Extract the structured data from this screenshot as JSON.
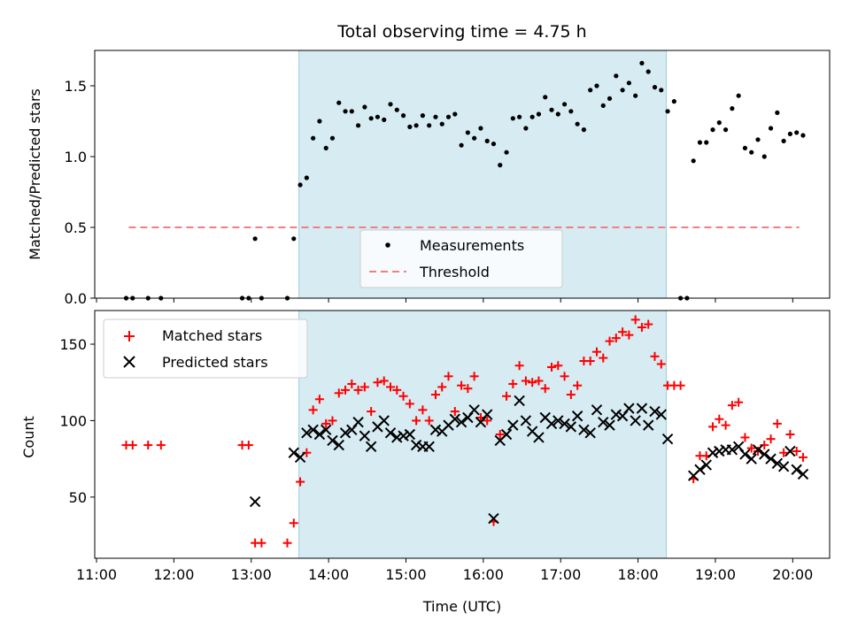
{
  "chart_data": [
    {
      "type": "scatter",
      "title": "Total observing time = 4.75 h",
      "ylabel": "Matched/Predicted stars",
      "xlabel": "",
      "xlim": [
        "11:00",
        "20:30"
      ],
      "ylim": [
        0,
        1.75
      ],
      "yticks": [
        "0.0",
        "0.5",
        "1.0",
        "1.5"
      ],
      "shaded_interval": [
        "13:37",
        "18:22"
      ],
      "threshold": {
        "name": "Threshold",
        "value": 0.5,
        "x_range": [
          "11:25",
          "20:05"
        ],
        "color": "#f07f7f"
      },
      "legend": {
        "placement": "lower-center",
        "entries": [
          "Measurements",
          "Threshold"
        ]
      },
      "series": [
        {
          "name": "Measurements",
          "color": "#000000",
          "points": [
            [
              "11:23",
              0
            ],
            [
              "11:28",
              0
            ],
            [
              "11:40",
              0
            ],
            [
              "11:50",
              0
            ],
            [
              "12:53",
              0
            ],
            [
              "12:58",
              0
            ],
            [
              "13:03",
              0.42
            ],
            [
              "13:08",
              0
            ],
            [
              "13:28",
              0
            ],
            [
              "13:33",
              0.42
            ],
            [
              "13:38",
              0.8
            ],
            [
              "13:43",
              0.85
            ],
            [
              "13:48",
              1.13
            ],
            [
              "13:53",
              1.25
            ],
            [
              "13:58",
              1.06
            ],
            [
              "14:03",
              1.13
            ],
            [
              "14:08",
              1.38
            ],
            [
              "14:13",
              1.32
            ],
            [
              "14:18",
              1.32
            ],
            [
              "14:23",
              1.22
            ],
            [
              "14:28",
              1.35
            ],
            [
              "14:33",
              1.27
            ],
            [
              "14:38",
              1.28
            ],
            [
              "14:43",
              1.26
            ],
            [
              "14:48",
              1.37
            ],
            [
              "14:53",
              1.33
            ],
            [
              "14:58",
              1.29
            ],
            [
              "15:03",
              1.21
            ],
            [
              "15:08",
              1.22
            ],
            [
              "15:13",
              1.29
            ],
            [
              "15:18",
              1.22
            ],
            [
              "15:23",
              1.28
            ],
            [
              "15:28",
              1.23
            ],
            [
              "15:33",
              1.28
            ],
            [
              "15:38",
              1.3
            ],
            [
              "15:43",
              1.08
            ],
            [
              "15:48",
              1.17
            ],
            [
              "15:53",
              1.13
            ],
            [
              "15:58",
              1.2
            ],
            [
              "16:03",
              1.11
            ],
            [
              "16:08",
              1.09
            ],
            [
              "16:13",
              0.94
            ],
            [
              "16:18",
              1.03
            ],
            [
              "16:23",
              1.27
            ],
            [
              "16:28",
              1.28
            ],
            [
              "16:33",
              1.2
            ],
            [
              "16:38",
              1.28
            ],
            [
              "16:43",
              1.3
            ],
            [
              "16:48",
              1.42
            ],
            [
              "16:53",
              1.33
            ],
            [
              "16:58",
              1.3
            ],
            [
              "17:03",
              1.37
            ],
            [
              "17:08",
              1.32
            ],
            [
              "17:13",
              1.23
            ],
            [
              "17:18",
              1.19
            ],
            [
              "17:23",
              1.47
            ],
            [
              "17:28",
              1.5
            ],
            [
              "17:33",
              1.36
            ],
            [
              "17:38",
              1.41
            ],
            [
              "17:43",
              1.57
            ],
            [
              "17:48",
              1.47
            ],
            [
              "17:53",
              1.52
            ],
            [
              "17:58",
              1.43
            ],
            [
              "18:03",
              1.66
            ],
            [
              "18:08",
              1.6
            ],
            [
              "18:13",
              1.49
            ],
            [
              "18:18",
              1.47
            ],
            [
              "18:23",
              1.32
            ],
            [
              "18:28",
              1.39
            ],
            [
              "18:33",
              0
            ],
            [
              "18:38",
              0
            ],
            [
              "18:43",
              0.97
            ],
            [
              "18:48",
              1.1
            ],
            [
              "18:53",
              1.1
            ],
            [
              "18:58",
              1.19
            ],
            [
              "19:03",
              1.24
            ],
            [
              "19:08",
              1.19
            ],
            [
              "19:13",
              1.34
            ],
            [
              "19:18",
              1.43
            ],
            [
              "19:23",
              1.06
            ],
            [
              "19:28",
              1.03
            ],
            [
              "19:33",
              1.12
            ],
            [
              "19:38",
              1.0
            ],
            [
              "19:43",
              1.2
            ],
            [
              "19:48",
              1.31
            ],
            [
              "19:53",
              1.11
            ],
            [
              "19:58",
              1.16
            ],
            [
              "20:03",
              1.17
            ],
            [
              "20:08",
              1.15
            ]
          ]
        }
      ]
    },
    {
      "type": "scatter",
      "title": "",
      "ylabel": "Count",
      "xlabel": "Time (UTC)",
      "xlim": [
        "11:00",
        "20:30"
      ],
      "ylim": [
        10,
        172
      ],
      "yticks": [
        "50",
        "100",
        "150"
      ],
      "xticks": [
        "11:00",
        "12:00",
        "13:00",
        "14:00",
        "15:00",
        "16:00",
        "17:00",
        "18:00",
        "19:00",
        "20:00"
      ],
      "shaded_interval": [
        "13:37",
        "18:22"
      ],
      "legend": {
        "placement": "upper-left",
        "entries": [
          "Matched stars",
          "Predicted stars"
        ]
      },
      "series": [
        {
          "name": "Matched stars",
          "marker": "plus",
          "color": "#ff0000",
          "points": [
            [
              "11:23",
              84
            ],
            [
              "11:28",
              84
            ],
            [
              "11:40",
              84
            ],
            [
              "11:50",
              84
            ],
            [
              "12:53",
              84
            ],
            [
              "12:58",
              84
            ],
            [
              "13:03",
              20
            ],
            [
              "13:08",
              20
            ],
            [
              "13:28",
              20
            ],
            [
              "13:33",
              33
            ],
            [
              "13:38",
              60
            ],
            [
              "13:43",
              79
            ],
            [
              "13:48",
              107
            ],
            [
              "13:53",
              114
            ],
            [
              "13:58",
              98
            ],
            [
              "14:03",
              100
            ],
            [
              "14:08",
              118
            ],
            [
              "14:13",
              120
            ],
            [
              "14:18",
              124
            ],
            [
              "14:23",
              120
            ],
            [
              "14:28",
              122
            ],
            [
              "14:33",
              106
            ],
            [
              "14:38",
              125
            ],
            [
              "14:43",
              126
            ],
            [
              "14:48",
              122
            ],
            [
              "14:53",
              120
            ],
            [
              "14:58",
              116
            ],
            [
              "15:03",
              111
            ],
            [
              "15:08",
              100
            ],
            [
              "15:13",
              107
            ],
            [
              "15:18",
              100
            ],
            [
              "15:23",
              117
            ],
            [
              "15:28",
              122
            ],
            [
              "15:33",
              129
            ],
            [
              "15:38",
              106
            ],
            [
              "15:43",
              123
            ],
            [
              "15:48",
              121
            ],
            [
              "15:53",
              129
            ],
            [
              "15:58",
              102
            ],
            [
              "16:03",
              100
            ],
            [
              "16:08",
              34
            ],
            [
              "16:13",
              91
            ],
            [
              "16:18",
              116
            ],
            [
              "16:23",
              124
            ],
            [
              "16:28",
              136
            ],
            [
              "16:33",
              126
            ],
            [
              "16:38",
              125
            ],
            [
              "16:43",
              126
            ],
            [
              "16:48",
              121
            ],
            [
              "16:53",
              135
            ],
            [
              "16:58",
              136
            ],
            [
              "17:03",
              129
            ],
            [
              "17:08",
              117
            ],
            [
              "17:13",
              123
            ],
            [
              "17:18",
              139
            ],
            [
              "17:23",
              139
            ],
            [
              "17:28",
              145
            ],
            [
              "17:33",
              141
            ],
            [
              "17:38",
              152
            ],
            [
              "17:43",
              154
            ],
            [
              "17:48",
              158
            ],
            [
              "17:53",
              156
            ],
            [
              "17:58",
              166
            ],
            [
              "18:03",
              161
            ],
            [
              "18:08",
              163
            ],
            [
              "18:13",
              142
            ],
            [
              "18:18",
              137
            ],
            [
              "18:23",
              123
            ],
            [
              "18:28",
              123
            ],
            [
              "18:33",
              123
            ],
            [
              "18:43",
              62
            ],
            [
              "18:48",
              77
            ],
            [
              "18:53",
              77
            ],
            [
              "18:58",
              96
            ],
            [
              "19:03",
              101
            ],
            [
              "19:08",
              97
            ],
            [
              "19:13",
              110
            ],
            [
              "19:18",
              112
            ],
            [
              "19:23",
              89
            ],
            [
              "19:28",
              82
            ],
            [
              "19:33",
              80
            ],
            [
              "19:38",
              84
            ],
            [
              "19:43",
              88
            ],
            [
              "19:48",
              98
            ],
            [
              "19:53",
              79
            ],
            [
              "19:58",
              91
            ],
            [
              "20:03",
              80
            ],
            [
              "20:08",
              76
            ]
          ]
        },
        {
          "name": "Predicted stars",
          "marker": "x",
          "color": "#000000",
          "points": [
            [
              "13:03",
              47
            ],
            [
              "13:33",
              79
            ],
            [
              "13:38",
              76
            ],
            [
              "13:43",
              92
            ],
            [
              "13:48",
              94
            ],
            [
              "13:53",
              91
            ],
            [
              "13:58",
              94
            ],
            [
              "14:03",
              87
            ],
            [
              "14:08",
              84
            ],
            [
              "14:13",
              92
            ],
            [
              "14:18",
              94
            ],
            [
              "14:23",
              99
            ],
            [
              "14:28",
              90
            ],
            [
              "14:33",
              83
            ],
            [
              "14:38",
              96
            ],
            [
              "14:43",
              100
            ],
            [
              "14:48",
              92
            ],
            [
              "14:53",
              89
            ],
            [
              "14:58",
              90
            ],
            [
              "15:03",
              91
            ],
            [
              "15:08",
              84
            ],
            [
              "15:13",
              83
            ],
            [
              "15:18",
              83
            ],
            [
              "15:23",
              94
            ],
            [
              "15:28",
              93
            ],
            [
              "15:33",
              97
            ],
            [
              "15:38",
              101
            ],
            [
              "15:43",
              99
            ],
            [
              "15:48",
              102
            ],
            [
              "15:53",
              107
            ],
            [
              "15:58",
              99
            ],
            [
              "16:03",
              104
            ],
            [
              "16:08",
              36
            ],
            [
              "16:13",
              87
            ],
            [
              "16:18",
              91
            ],
            [
              "16:23",
              97
            ],
            [
              "16:28",
              113
            ],
            [
              "16:33",
              100
            ],
            [
              "16:38",
              93
            ],
            [
              "16:43",
              89
            ],
            [
              "16:48",
              102
            ],
            [
              "16:53",
              98
            ],
            [
              "16:58",
              100
            ],
            [
              "17:03",
              98
            ],
            [
              "17:08",
              96
            ],
            [
              "17:13",
              103
            ],
            [
              "17:18",
              94
            ],
            [
              "17:23",
              92
            ],
            [
              "17:28",
              107
            ],
            [
              "17:33",
              99
            ],
            [
              "17:38",
              97
            ],
            [
              "17:43",
              104
            ],
            [
              "17:48",
              103
            ],
            [
              "17:53",
              108
            ],
            [
              "17:58",
              100
            ],
            [
              "18:03",
              108
            ],
            [
              "18:08",
              97
            ],
            [
              "18:13",
              106
            ],
            [
              "18:18",
              104
            ],
            [
              "18:23",
              88
            ],
            [
              "18:43",
              64
            ],
            [
              "18:48",
              68
            ],
            [
              "18:53",
              71
            ],
            [
              "18:58",
              79
            ],
            [
              "19:03",
              80
            ],
            [
              "19:08",
              81
            ],
            [
              "19:13",
              81
            ],
            [
              "19:18",
              83
            ],
            [
              "19:23",
              78
            ],
            [
              "19:28",
              75
            ],
            [
              "19:33",
              81
            ],
            [
              "19:38",
              78
            ],
            [
              "19:43",
              75
            ],
            [
              "19:48",
              72
            ],
            [
              "19:53",
              70
            ],
            [
              "19:58",
              80
            ],
            [
              "20:03",
              68
            ],
            [
              "20:08",
              65
            ]
          ]
        }
      ]
    }
  ]
}
